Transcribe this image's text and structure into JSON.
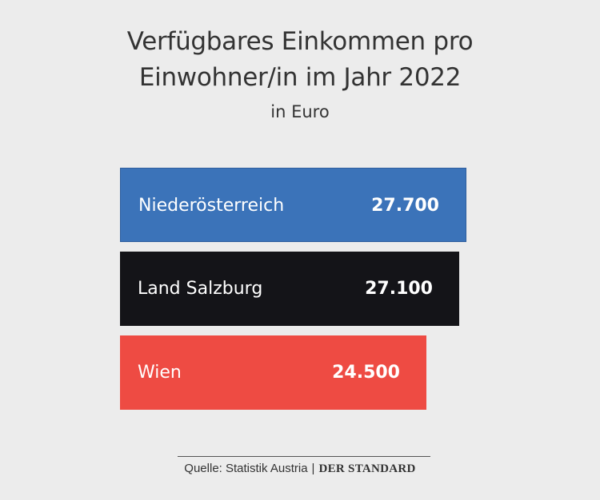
{
  "chart_data": {
    "type": "bar",
    "orientation": "horizontal",
    "title_line1": "Verfügbares Einkommen pro",
    "title_line2": "Einwohner/in im Jahr 2022",
    "subtitle": "in Euro",
    "categories": [
      "Niederösterreich",
      "Land Salzburg",
      "Wien"
    ],
    "values": [
      27700,
      27100,
      24500
    ],
    "value_labels": [
      "27.700",
      "27.100",
      "24.500"
    ],
    "colors": [
      "#3b73b9",
      "#141418",
      "#ee4b43"
    ],
    "xlabel": "",
    "ylabel": "",
    "grid": false
  },
  "source": {
    "text": "Quelle: Statistik Austria",
    "separator": "|",
    "publisher": "DER STANDARD"
  }
}
